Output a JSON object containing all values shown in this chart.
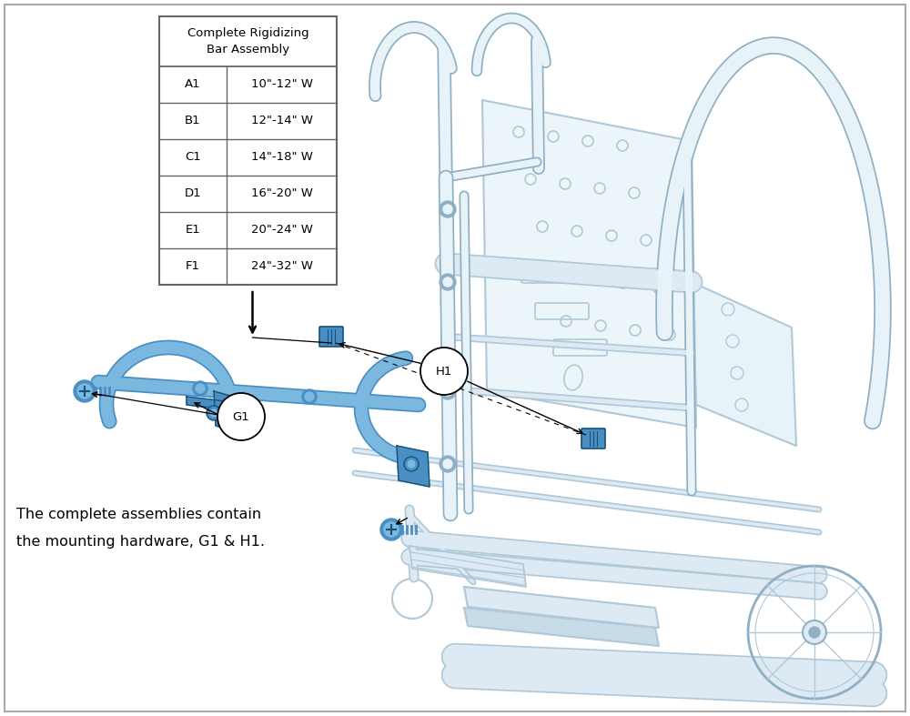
{
  "background_color": "#ffffff",
  "border_color": "#aaaaaa",
  "table_header": "Complete Rigidizing\nBar Assembly",
  "table_rows": [
    [
      "A1",
      "10\"-12\" W"
    ],
    [
      "B1",
      "12\"-14\" W"
    ],
    [
      "C1",
      "14\"-18\" W"
    ],
    [
      "D1",
      "16\"-20\" W"
    ],
    [
      "E1",
      "20\"-24\" W"
    ],
    [
      "F1",
      "24\"-32\" W"
    ]
  ],
  "note_line1": "The complete assemblies contain",
  "note_line2": "the mounting hardware, G1 & H1.",
  "frame_dark": "#8fafc4",
  "frame_mid": "#b0c8d8",
  "frame_light": "#ddeaf3",
  "frame_fill": "#e8f3f9",
  "blue_part": "#4a8fc4",
  "blue_light": "#7ab8e0",
  "blue_dark": "#1a5276",
  "text_dark": "#222222",
  "table_border": "#666666",
  "screw_blue": "#3a7abd"
}
